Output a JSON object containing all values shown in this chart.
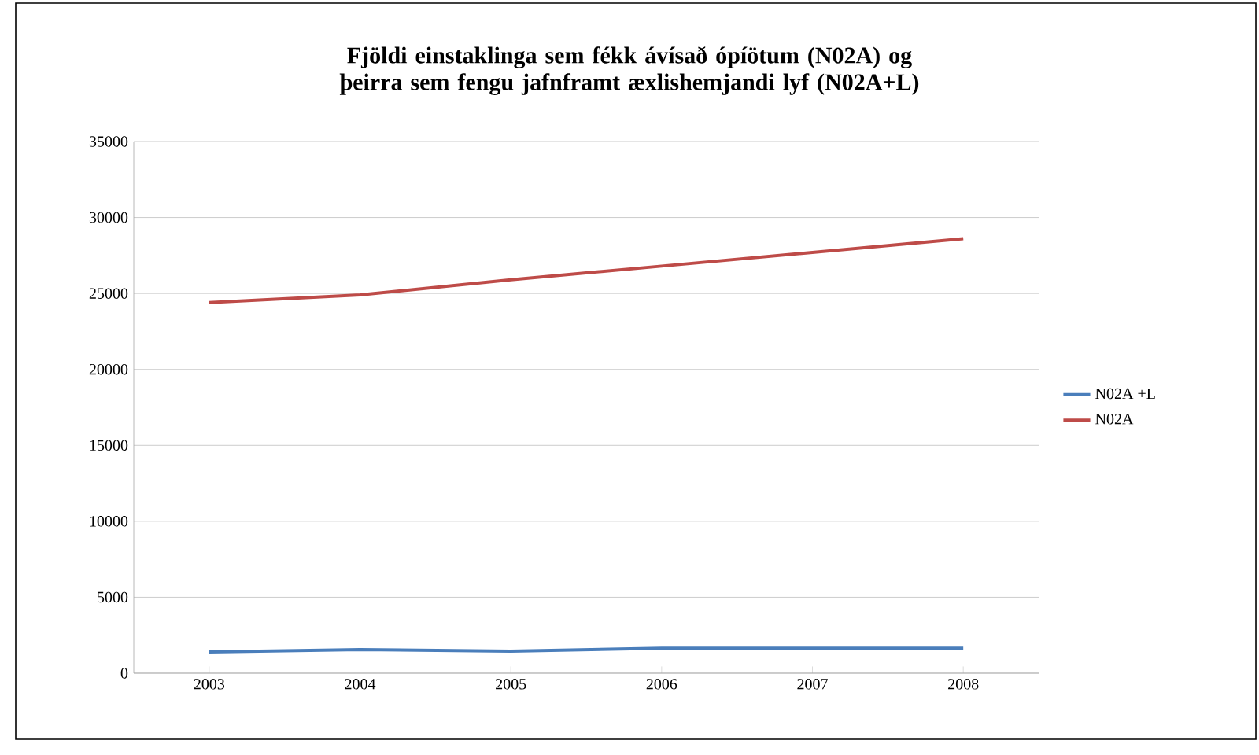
{
  "chart_data": {
    "type": "line",
    "title": "Fjöldi einstaklinga sem fékk ávísað ópíötum (N02A) og þeirra sem fengu  jafnframt æxlishemjandi lyf (N02A+L)",
    "categories": [
      "2003",
      "2004",
      "2005",
      "2006",
      "2007",
      "2008"
    ],
    "series": [
      {
        "name": "N02A +L",
        "color": "#4a7ebb",
        "values": [
          1400,
          1550,
          1450,
          1650,
          1650,
          1650
        ]
      },
      {
        "name": "N02A",
        "color": "#be4b48",
        "values": [
          24400,
          24900,
          25900,
          26800,
          27700,
          28600
        ]
      }
    ],
    "ylim": [
      0,
      35000
    ],
    "yticks": [
      0,
      5000,
      10000,
      15000,
      20000,
      25000,
      30000,
      35000
    ],
    "grid": "y",
    "legend": "right",
    "marker": "none",
    "line_style": "solid"
  }
}
